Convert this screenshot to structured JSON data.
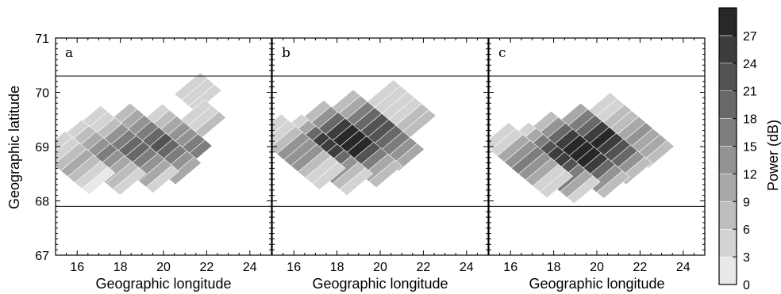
{
  "chart_data": {
    "type": "heatmap",
    "ylabel": "Geographic latitude",
    "colorbar": {
      "label": "Power (dB)",
      "ticks": [
        0,
        3,
        6,
        9,
        12,
        15,
        18,
        21,
        24,
        27
      ],
      "range": [
        0,
        30
      ],
      "colormap": "gray-reversed"
    },
    "reference_lines_latitude": [
      70.3,
      67.9
    ],
    "panels": [
      {
        "label": "a",
        "xlabel": "Geographic longitude",
        "xlim": [
          15,
          25
        ],
        "ylim": [
          67,
          71
        ],
        "xticks": [
          16,
          18,
          20,
          22,
          24
        ],
        "yticks": [
          67,
          68,
          69,
          70,
          71
        ],
        "beams": [
          {
            "lon": 21.6,
            "lat": 70.0,
            "cells": [
              3,
              3,
              3
            ]
          },
          {
            "lon": 21.8,
            "lat": 69.5,
            "cells": [
              6,
              5,
              4
            ]
          },
          {
            "lon": 20.5,
            "lat": 69.2,
            "cells": [
              15,
              16,
              14,
              12,
              9,
              6,
              4
            ]
          },
          {
            "lon": 19.5,
            "lat": 69.05,
            "cells": [
              9,
              12,
              15,
              19,
              22,
              20,
              17,
              12,
              9,
              6
            ]
          },
          {
            "lon": 18.3,
            "lat": 68.95,
            "cells": [
              5,
              9,
              13,
              17,
              20,
              19,
              16,
              12,
              8,
              5,
              3
            ]
          },
          {
            "lon": 17.1,
            "lat": 68.8,
            "cells": [
              3,
              6,
              10,
              14,
              16,
              14,
              10,
              6,
              3
            ]
          },
          {
            "lon": 16.0,
            "lat": 68.7,
            "cells": [
              2,
              4,
              7,
              9,
              8,
              5,
              3
            ]
          }
        ]
      },
      {
        "label": "b",
        "xlabel": "Geographic longitude",
        "xlim": [
          15,
          25
        ],
        "ylim": [
          67,
          71
        ],
        "xticks": [
          16,
          18,
          20,
          22,
          24
        ],
        "yticks": [
          67,
          68,
          69,
          70,
          71
        ],
        "beams": [
          {
            "lon": 21.0,
            "lat": 69.7,
            "cells": [
              6,
              6,
              5,
              5,
              4,
              3
            ]
          },
          {
            "lon": 19.8,
            "lat": 69.3,
            "cells": [
              9,
              13,
              17,
              20,
              22,
              22,
              19,
              15,
              11,
              8
            ]
          },
          {
            "lon": 18.6,
            "lat": 69.05,
            "cells": [
              6,
              11,
              17,
              22,
              27,
              28,
              27,
              24,
              18,
              12,
              6
            ]
          },
          {
            "lon": 17.4,
            "lat": 68.85,
            "cells": [
              4,
              8,
              14,
              20,
              24,
              26,
              24,
              18,
              11,
              5
            ]
          },
          {
            "lon": 16.3,
            "lat": 68.9,
            "cells": [
              3,
              5,
              8,
              12,
              14,
              12,
              8,
              5,
              3
            ]
          }
        ]
      },
      {
        "label": "c",
        "xlabel": "Geographic longitude",
        "xlim": [
          15,
          25
        ],
        "ylim": [
          67,
          71
        ],
        "xticks": [
          16,
          18,
          20,
          22,
          24
        ],
        "yticks": [
          67,
          68,
          69,
          70,
          71
        ],
        "beams": [
          {
            "lon": 21.5,
            "lat": 69.3,
            "cells": [
              6,
              9,
              11,
              12,
              10,
              8,
              6,
              4,
              3
            ]
          },
          {
            "lon": 20.3,
            "lat": 69.05,
            "cells": [
              8,
              13,
              18,
              22,
              26,
              27,
              25,
              20,
              15,
              10
            ]
          },
          {
            "lon": 19.1,
            "lat": 68.85,
            "cells": [
              6,
              12,
              18,
              24,
              28,
              29,
              28,
              25,
              19,
              12,
              6
            ]
          },
          {
            "lon": 17.9,
            "lat": 68.7,
            "cells": [
              4,
              9,
              15,
              21,
              25,
              26,
              23,
              17,
              10,
              5
            ]
          },
          {
            "lon": 16.8,
            "lat": 68.75,
            "cells": [
              3,
              5,
              9,
              13,
              15,
              13,
              9,
              5,
              3
            ]
          }
        ]
      }
    ]
  }
}
